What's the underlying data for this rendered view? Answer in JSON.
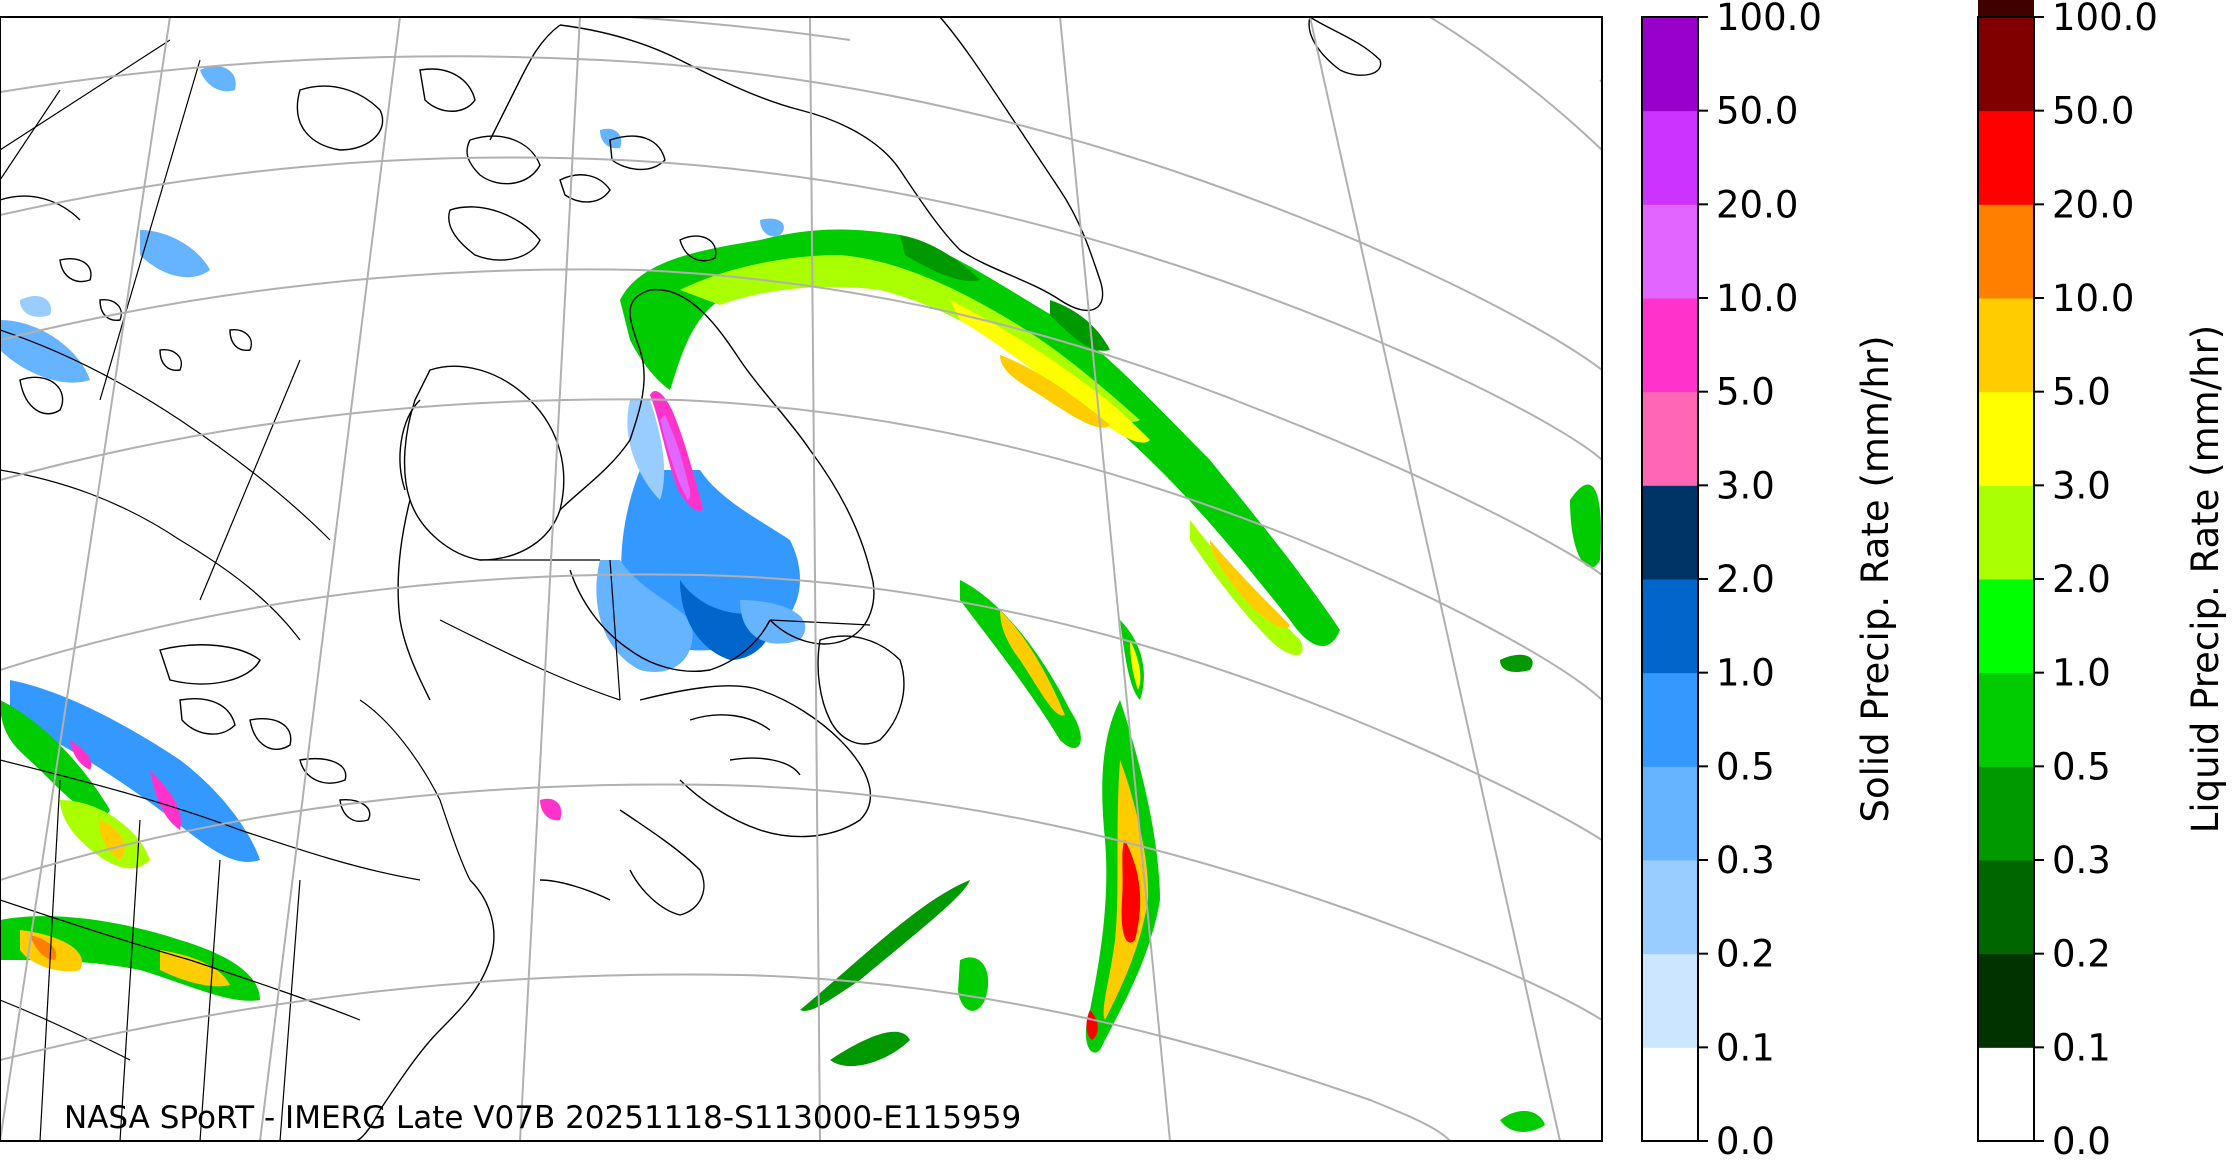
{
  "map": {
    "credit": "NASA SPoRT - IMERG Late V07B 20251118-S113000-E115959",
    "gridline_color": "#b0b0b0",
    "coastline_color": "#000000",
    "border_color": "#000000"
  },
  "colorbars": [
    {
      "id": "solid",
      "label": "Solid Precip. Rate (mm/hr)",
      "ticks": [
        "0.0",
        "0.1",
        "0.2",
        "0.3",
        "0.5",
        "1.0",
        "2.0",
        "3.0",
        "5.0",
        "10.0",
        "20.0",
        "50.0",
        "100.0"
      ],
      "colors": [
        "#ffffff",
        "#cce6ff",
        "#99ccff",
        "#66b3ff",
        "#3399ff",
        "#0066cc",
        "#003366",
        "#ff66b3",
        "#ff33cc",
        "#e066ff",
        "#cc33ff",
        "#9900cc"
      ]
    },
    {
      "id": "liquid",
      "label": "Liquid Precip. Rate (mm/hr)",
      "ticks": [
        "0.0",
        "0.1",
        "0.2",
        "0.3",
        "0.5",
        "1.0",
        "2.0",
        "3.0",
        "5.0",
        "10.0",
        "20.0",
        "50.0",
        "100.0"
      ],
      "colors": [
        "#ffffff",
        "#003300",
        "#006600",
        "#009900",
        "#00cc00",
        "#00ff00",
        "#aaff00",
        "#ffff00",
        "#ffcc00",
        "#ff8000",
        "#ff0000",
        "#800000",
        "#400000"
      ]
    }
  ]
}
